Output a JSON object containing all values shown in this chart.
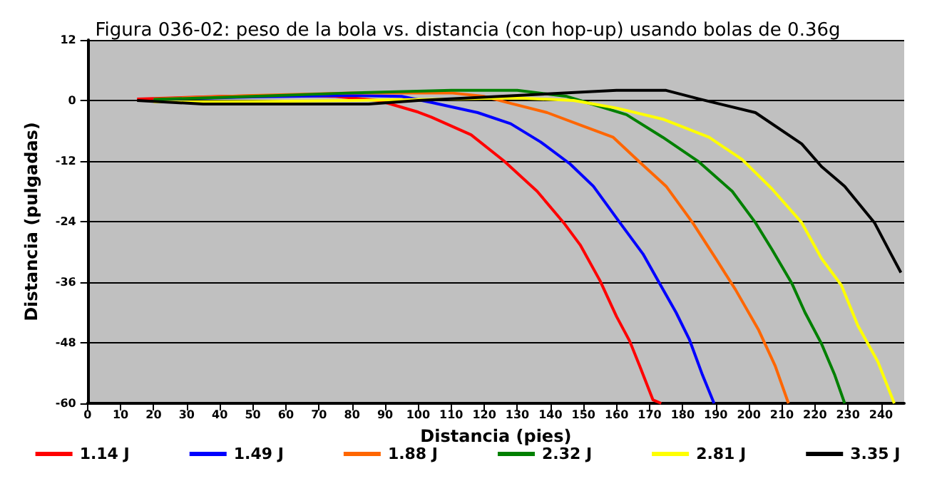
{
  "chart_data": {
    "type": "line",
    "title": "Figura 036-02: peso de la bola vs. distancia (con hop-up) usando bolas de 0.36g",
    "xlabel": "Distancia (pies)",
    "ylabel": "Distancia (pulgadas)",
    "xlim": [
      0,
      247
    ],
    "ylim": [
      -60,
      12
    ],
    "xticks": [
      0,
      10,
      20,
      30,
      40,
      50,
      60,
      70,
      80,
      90,
      100,
      110,
      120,
      130,
      140,
      150,
      160,
      170,
      180,
      190,
      200,
      210,
      220,
      230,
      240
    ],
    "yticks": [
      -60,
      -48,
      -36,
      -24,
      -12,
      0,
      12
    ],
    "grid": "y",
    "legend": "bottom",
    "marker": "none",
    "line_style": "solid",
    "series": [
      {
        "name": "1.14 J",
        "color": "#ff0000",
        "x": [
          15,
          40,
          60,
          75,
          88,
          100,
          104,
          116,
          126,
          136,
          144,
          149,
          155,
          160,
          164,
          167,
          171,
          173.5
        ],
        "values": [
          0.3,
          0.8,
          1,
          0.8,
          0,
          -2.3,
          -3.3,
          -6.8,
          -12,
          -18,
          -24.2,
          -28.6,
          -35.7,
          -42.8,
          -47.7,
          -52.6,
          -59.3,
          -60
        ]
      },
      {
        "name": "1.49 J",
        "color": "#0000ff",
        "x": [
          20,
          50,
          80,
          95,
          104,
          118,
          128,
          137,
          146,
          153,
          161,
          168,
          173,
          178,
          182,
          186,
          189.5
        ],
        "values": [
          0.2,
          0.7,
          1,
          0.8,
          -0.4,
          -2.4,
          -4.6,
          -8.2,
          -12.6,
          -17,
          -24.2,
          -30.4,
          -36.2,
          -42,
          -47.3,
          -54.4,
          -60
        ]
      },
      {
        "name": "1.88 J",
        "color": "#ff6600",
        "x": [
          20,
          50,
          80,
          110,
          120,
          127,
          139,
          150,
          159,
          167,
          175,
          183,
          190,
          196,
          203,
          208,
          212
        ],
        "values": [
          0.3,
          1,
          1.5,
          1.5,
          0.8,
          -0.4,
          -2.4,
          -5.1,
          -7.3,
          -12.2,
          -17,
          -24.2,
          -31.3,
          -37.5,
          -45.5,
          -52.6,
          -60
        ]
      },
      {
        "name": "2.32 J",
        "color": "#008000",
        "x": [
          20,
          50,
          80,
          110,
          130,
          145,
          152,
          163,
          174,
          185,
          195,
          202,
          207,
          213,
          217,
          222,
          226,
          229
        ],
        "values": [
          0.2,
          0.8,
          1.5,
          2,
          2,
          0.8,
          -0.6,
          -2.8,
          -7.3,
          -12.2,
          -18,
          -24.2,
          -29.5,
          -36.2,
          -42,
          -48.2,
          -54.4,
          -60
        ]
      },
      {
        "name": "2.81 J",
        "color": "#ffff00",
        "x": [
          20,
          50,
          80,
          110,
          130,
          147,
          160,
          174,
          188,
          198,
          207,
          216,
          222,
          228,
          233,
          239,
          244
        ],
        "values": [
          -0.3,
          -0.2,
          0,
          0.3,
          0.5,
          0,
          -1.5,
          -3.7,
          -7.3,
          -11.7,
          -17.5,
          -24.2,
          -31.3,
          -36.6,
          -44.6,
          -51.7,
          -60
        ]
      },
      {
        "name": "3.35 J",
        "color": "#000000",
        "x": [
          15,
          35,
          85,
          100,
          130,
          160,
          175,
          185,
          202,
          216,
          222,
          229,
          238,
          243,
          246
        ],
        "values": [
          0,
          -0.7,
          -0.7,
          0,
          1,
          2,
          2,
          0.3,
          -2.4,
          -8.6,
          -13.1,
          -17,
          -24.2,
          -30.4,
          -34.1
        ]
      }
    ]
  }
}
